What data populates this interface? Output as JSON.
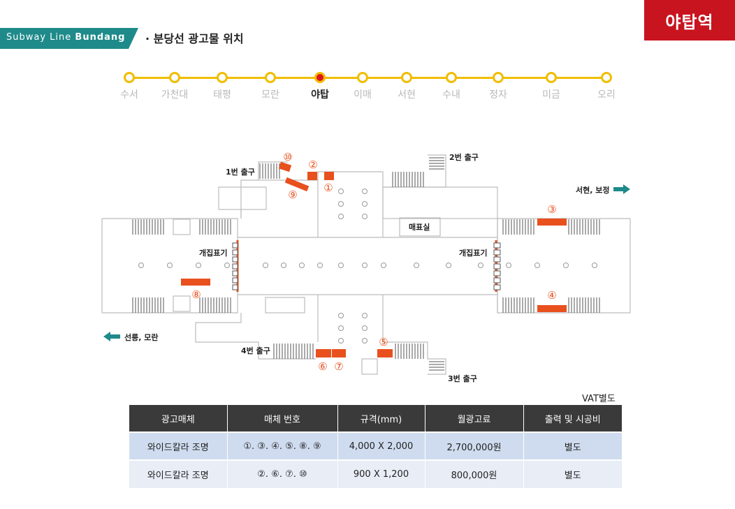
{
  "header": {
    "station_badge": "야탑역",
    "line_name_prefix": "Subway Line ",
    "line_name_bold": "Bundang",
    "title": "· 분당선 광고물 위치",
    "line_tag_color": "#1f8a8a",
    "badge_color": "#c8141e"
  },
  "route": {
    "line_color": "#f0bd00",
    "stations": [
      {
        "name": "수서",
        "current": false
      },
      {
        "name": "가천대",
        "current": false
      },
      {
        "name": "태평",
        "current": false
      },
      {
        "name": "모란",
        "current": false
      },
      {
        "name": "야탑",
        "current": true
      },
      {
        "name": "이매",
        "current": false
      },
      {
        "name": "서현",
        "current": false
      },
      {
        "name": "수내",
        "current": false
      },
      {
        "name": "정자",
        "current": false
      },
      {
        "name": "미금",
        "current": false
      },
      {
        "name": "오리",
        "current": false
      }
    ]
  },
  "map": {
    "exit1": "1번 출구",
    "exit2": "2번 출구",
    "exit3": "3번 출구",
    "exit4": "4번 출구",
    "ticket_office": "매표실",
    "gate_left": "개집표기",
    "gate_right": "개집표기",
    "dir_right": "서현, 보정",
    "dir_left": "선릉, 모란",
    "ad_color": "#e8501e",
    "arrow_color": "#1f8a8a",
    "markers": [
      "①",
      "②",
      "③",
      "④",
      "⑤",
      "⑥",
      "⑦",
      "⑧",
      "⑨",
      "⑩"
    ]
  },
  "table": {
    "note": "VAT별도",
    "headers": [
      "광고매체",
      "매체 번호",
      "규격(mm)",
      "월광고료",
      "출력 및 시공비"
    ],
    "rows": [
      [
        "와이드칼라 조명",
        "①. ③. ④. ⑤. ⑧. ⑨",
        "4,000 X 2,000",
        "2,700,000원",
        "별도"
      ],
      [
        "와이드칼라 조명",
        "②. ⑥. ⑦. ⑩",
        "900 X 1,200",
        "800,000원",
        "별도"
      ]
    ]
  }
}
